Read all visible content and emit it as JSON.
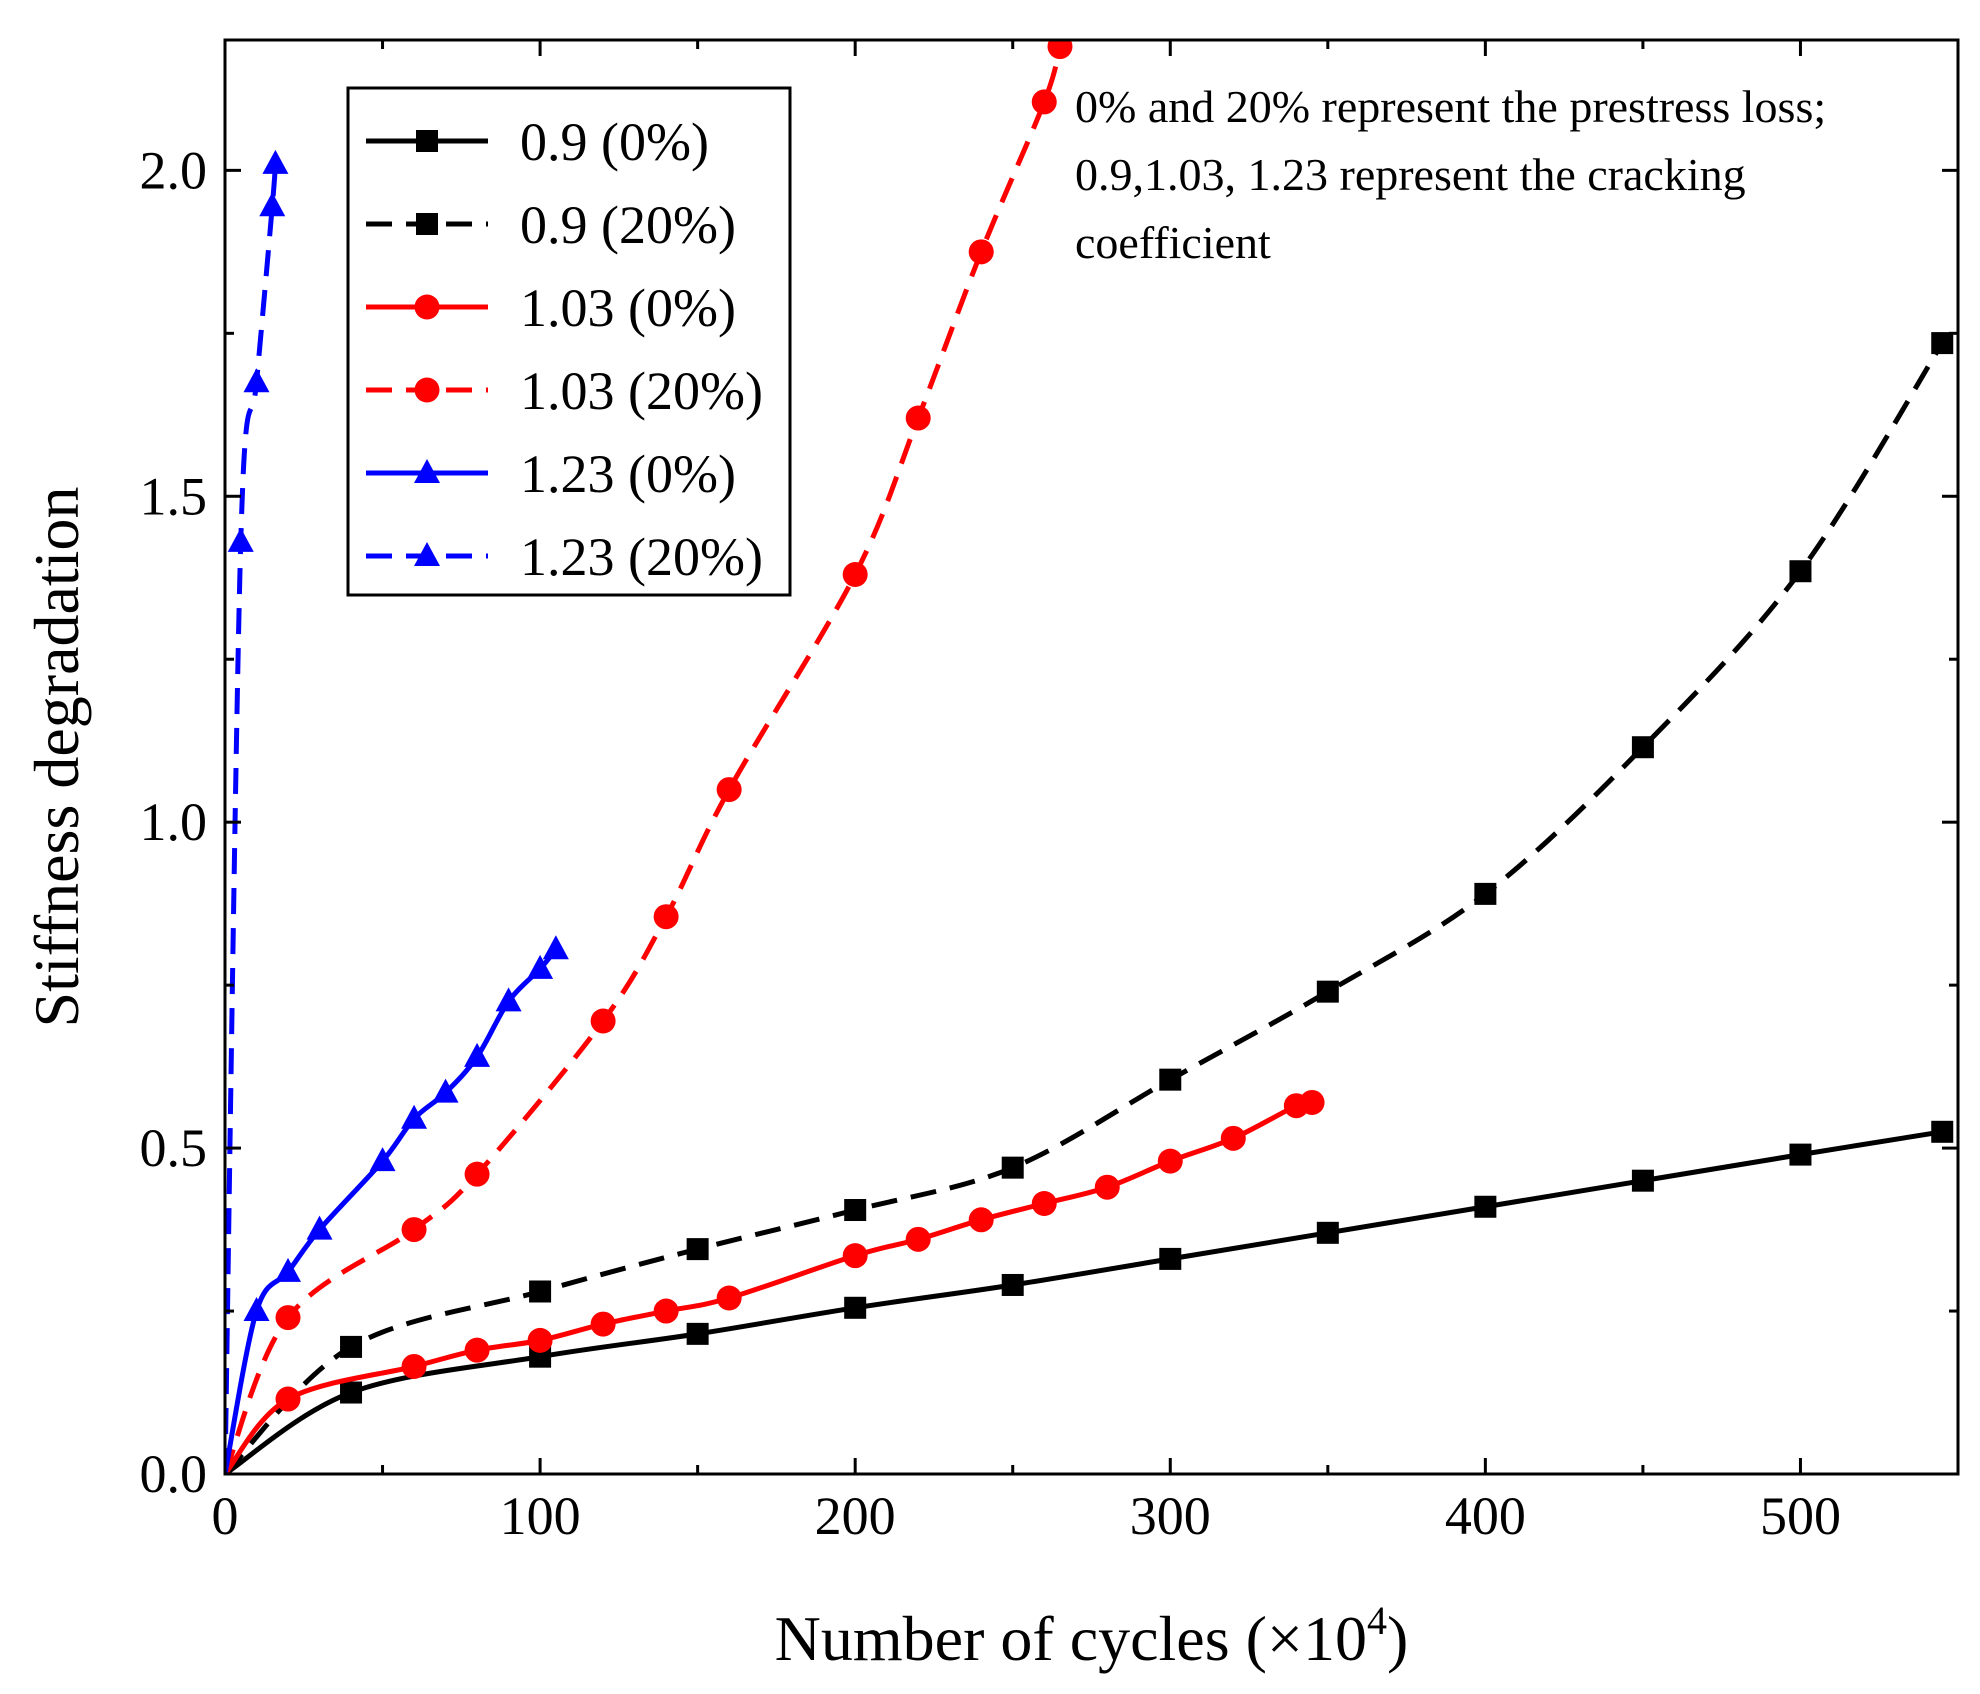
{
  "chart_data": {
    "type": "line",
    "xlabel": "Number of cycles (×10",
    "xlabel_sup": "4",
    "xlabel_close": ")",
    "ylabel": "Stiffness degradation",
    "xlim": [
      0,
      550
    ],
    "ylim": [
      0,
      2.2
    ],
    "xticks": [
      0,
      100,
      200,
      300,
      400,
      500
    ],
    "xtick_labels": [
      "0",
      "100",
      "200",
      "300",
      "400",
      "500"
    ],
    "yticks": [
      0,
      0.5,
      1.0,
      1.5,
      2.0
    ],
    "ytick_labels": [
      "0.0",
      "0.5",
      "1.0",
      "1.5",
      "2.0"
    ],
    "annotation": [
      "0% and 20% represent the prestress loss;",
      "0.9,1.03, 1.23 represent the cracking",
      "coefficient"
    ],
    "legend_position": "top-left",
    "series": [
      {
        "name": "0.9 (0%)",
        "color": "#000000",
        "dash": "solid",
        "marker": "square",
        "x": [
          0,
          40,
          100,
          150,
          200,
          250,
          300,
          350,
          400,
          450,
          500,
          545
        ],
        "y": [
          0,
          0.125,
          0.18,
          0.215,
          0.255,
          0.29,
          0.33,
          0.37,
          0.41,
          0.45,
          0.49,
          0.525
        ]
      },
      {
        "name": "0.9 (20%)",
        "color": "#000000",
        "dash": "dashed",
        "marker": "square",
        "x": [
          0,
          40,
          100,
          150,
          200,
          250,
          300,
          350,
          400,
          450,
          500,
          545
        ],
        "y": [
          0,
          0.195,
          0.28,
          0.345,
          0.405,
          0.47,
          0.605,
          0.74,
          0.89,
          1.115,
          1.385,
          1.735
        ]
      },
      {
        "name": "1.03 (0%)",
        "color": "#ff0000",
        "dash": "solid",
        "marker": "circle",
        "x": [
          0,
          20,
          60,
          80,
          100,
          120,
          140,
          160,
          200,
          220,
          240,
          260,
          280,
          300,
          320,
          340,
          345
        ],
        "y": [
          0,
          0.115,
          0.165,
          0.19,
          0.205,
          0.23,
          0.25,
          0.27,
          0.335,
          0.36,
          0.39,
          0.415,
          0.44,
          0.48,
          0.515,
          0.565,
          0.57
        ]
      },
      {
        "name": "1.03 (20%)",
        "color": "#ff0000",
        "dash": "dashed",
        "marker": "circle",
        "x": [
          0,
          20,
          60,
          80,
          120,
          140,
          160,
          200,
          220,
          240,
          260,
          265
        ],
        "y": [
          0,
          0.24,
          0.375,
          0.46,
          0.695,
          0.855,
          1.05,
          1.38,
          1.62,
          1.875,
          2.105,
          2.19
        ]
      },
      {
        "name": "1.23 (0%)",
        "color": "#0000ff",
        "dash": "solid",
        "marker": "triangle",
        "x": [
          0,
          10,
          20,
          30,
          50,
          60,
          70,
          80,
          90,
          100,
          105
        ],
        "y": [
          0,
          0.25,
          0.31,
          0.375,
          0.48,
          0.545,
          0.585,
          0.64,
          0.725,
          0.775,
          0.805
        ]
      },
      {
        "name": "1.23 (20%)",
        "color": "#0000ff",
        "dash": "dashed",
        "marker": "triangle",
        "x": [
          0,
          5,
          10,
          15,
          16
        ],
        "y": [
          0,
          1.43,
          1.675,
          1.945,
          2.01
        ]
      }
    ]
  }
}
